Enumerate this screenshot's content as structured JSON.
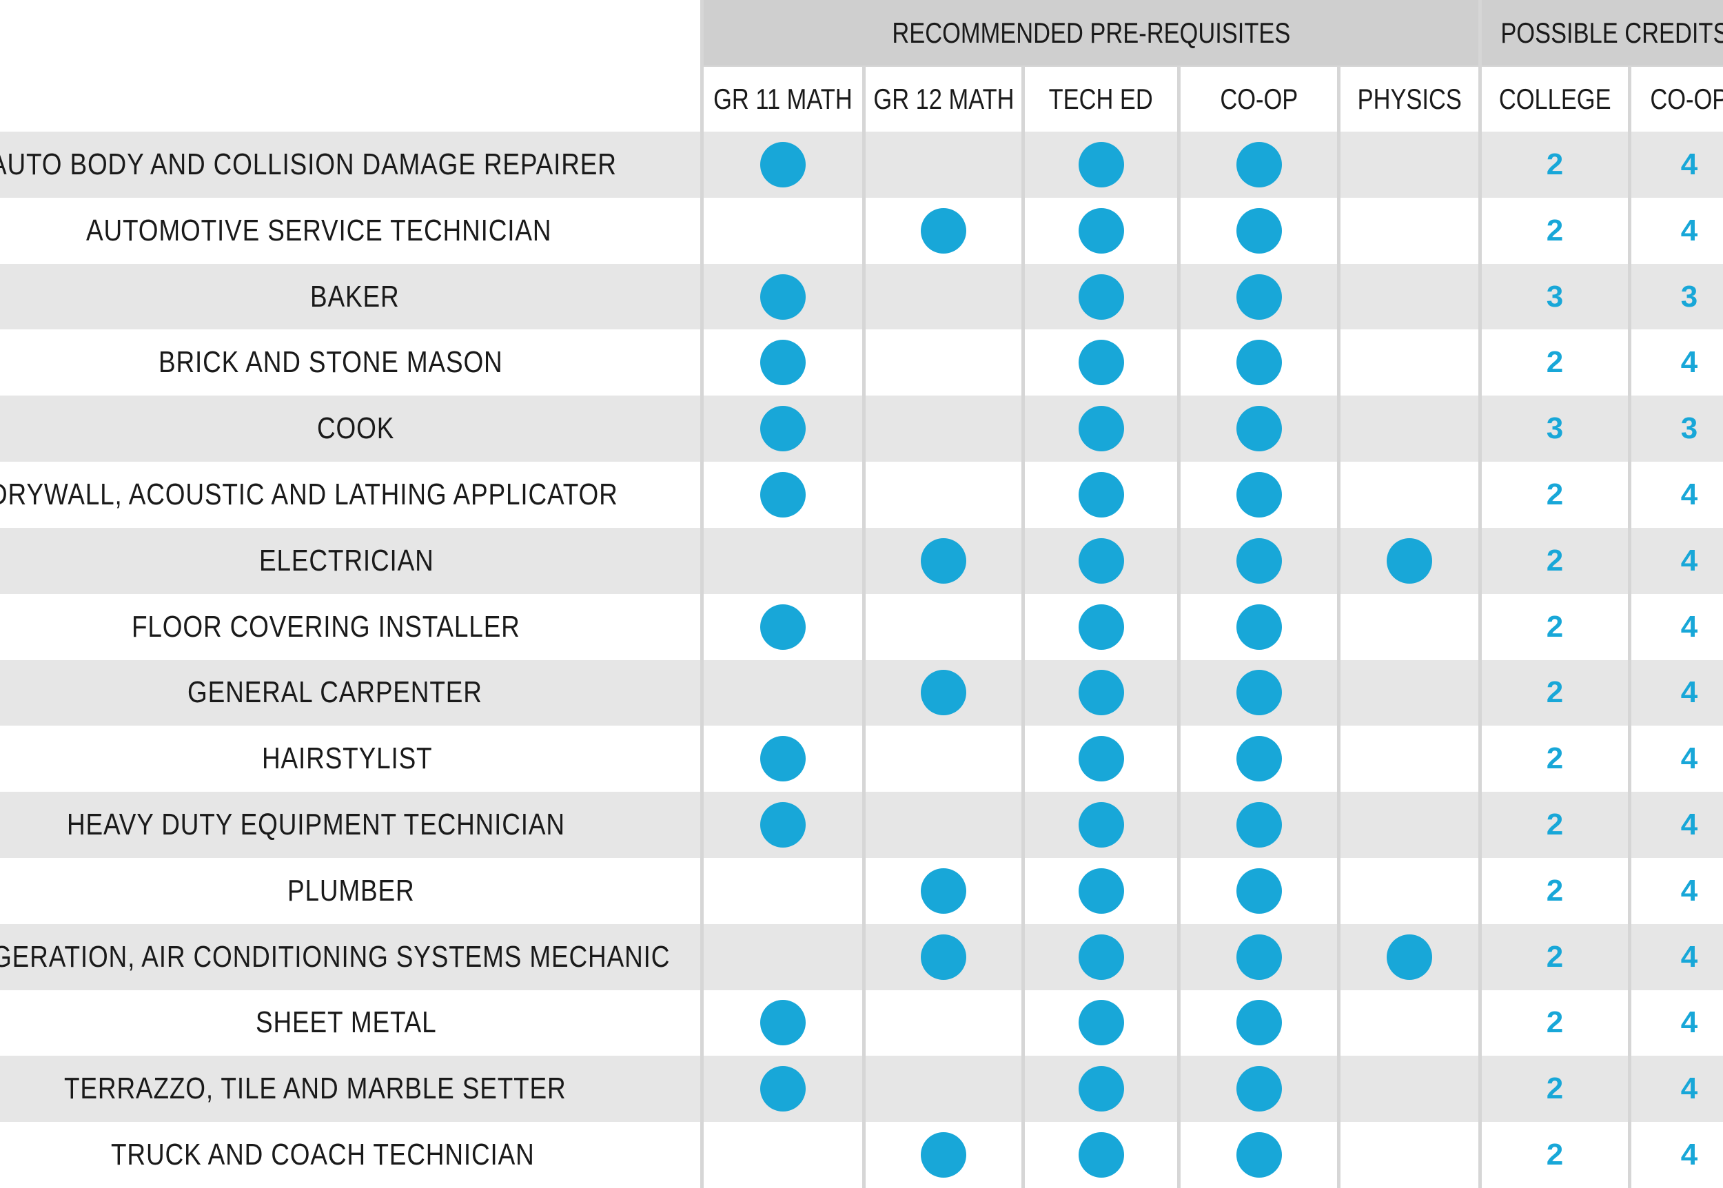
{
  "headers": {
    "group_prereq": "RECOMMENDED PRE-REQUISITES",
    "group_credits": "POSSIBLE CREDITS",
    "columns": [
      "GR 11 MATH",
      "GR 12 MATH",
      "TECH ED",
      "CO-OP",
      "PHYSICS",
      "COLLEGE",
      "CO-OP"
    ]
  },
  "colors": {
    "accent": "#18a7d8",
    "shade_row": "#e6e6e6",
    "header_bg": "#cfcfcf"
  },
  "rows": [
    {
      "name": "AUTO BODY AND COLLISION DAMAGE REPAIRER",
      "prereq": [
        true,
        false,
        true,
        true,
        false
      ],
      "college": "2",
      "coop": "4"
    },
    {
      "name": "AUTOMOTIVE SERVICE TECHNICIAN",
      "prereq": [
        false,
        true,
        true,
        true,
        false
      ],
      "college": "2",
      "coop": "4"
    },
    {
      "name": "BAKER",
      "prereq": [
        true,
        false,
        true,
        true,
        false
      ],
      "college": "3",
      "coop": "3"
    },
    {
      "name": "BRICK AND STONE MASON",
      "prereq": [
        true,
        false,
        true,
        true,
        false
      ],
      "college": "2",
      "coop": "4"
    },
    {
      "name": "COOK",
      "prereq": [
        true,
        false,
        true,
        true,
        false
      ],
      "college": "3",
      "coop": "3"
    },
    {
      "name": "DRYWALL, ACOUSTIC AND LATHING  APPLICATOR",
      "prereq": [
        true,
        false,
        true,
        true,
        false
      ],
      "college": "2",
      "coop": "4"
    },
    {
      "name": "ELECTRICIAN",
      "prereq": [
        false,
        true,
        true,
        true,
        true
      ],
      "college": "2",
      "coop": "4"
    },
    {
      "name": "FLOOR COVERING INSTALLER",
      "prereq": [
        true,
        false,
        true,
        true,
        false
      ],
      "college": "2",
      "coop": "4"
    },
    {
      "name": "GENERAL CARPENTER",
      "prereq": [
        false,
        true,
        true,
        true,
        false
      ],
      "college": "2",
      "coop": "4"
    },
    {
      "name": "HAIRSTYLIST",
      "prereq": [
        true,
        false,
        true,
        true,
        false
      ],
      "college": "2",
      "coop": "4"
    },
    {
      "name": "HEAVY DUTY EQUIPMENT TECHNICIAN",
      "prereq": [
        true,
        false,
        true,
        true,
        false
      ],
      "college": "2",
      "coop": "4"
    },
    {
      "name": "PLUMBER",
      "prereq": [
        false,
        true,
        true,
        true,
        false
      ],
      "college": "2",
      "coop": "4"
    },
    {
      "name": "REFRIGERATION, AIR CONDITIONING SYSTEMS MECHANIC",
      "prereq": [
        false,
        true,
        true,
        true,
        true
      ],
      "college": "2",
      "coop": "4"
    },
    {
      "name": "SHEET METAL",
      "prereq": [
        true,
        false,
        true,
        true,
        false
      ],
      "college": "2",
      "coop": "4"
    },
    {
      "name": "TERRAZZO, TILE AND MARBLE SETTER",
      "prereq": [
        true,
        false,
        true,
        true,
        false
      ],
      "college": "2",
      "coop": "4"
    },
    {
      "name": "TRUCK AND COACH TECHNICIAN",
      "prereq": [
        false,
        true,
        true,
        true,
        false
      ],
      "college": "2",
      "coop": "4"
    }
  ]
}
